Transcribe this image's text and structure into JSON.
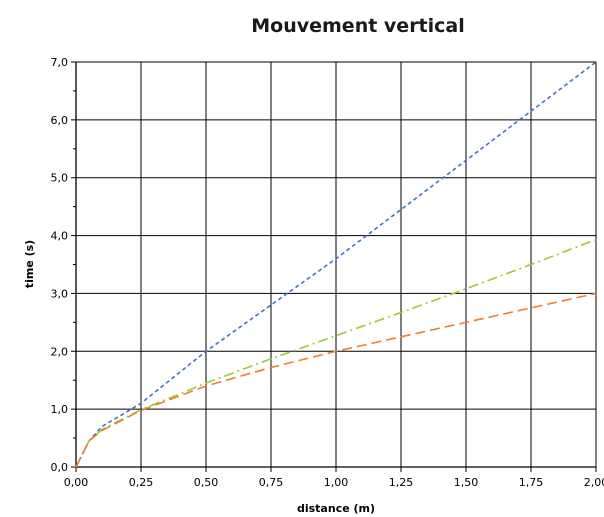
{
  "chart_data": {
    "type": "line",
    "title": "Mouvement vertical",
    "xlabel": "distance (m)",
    "ylabel": "time (s)",
    "xlim": [
      0,
      2
    ],
    "ylim": [
      0,
      7
    ],
    "grid": true,
    "x_ticks": [
      "0,00",
      "0,25",
      "0,50",
      "0,75",
      "1,00",
      "1,25",
      "1,50",
      "1,75",
      "2,00"
    ],
    "y_ticks": [
      "0,0",
      "1,0",
      "2,0",
      "3,0",
      "4,0",
      "5,0",
      "6,0",
      "7,0"
    ],
    "series": [
      {
        "color": "#4472c4",
        "style": "short-dash",
        "x": [
          0,
          0.05,
          0.1,
          0.25,
          0.5,
          0.75,
          1.0,
          1.25,
          1.5,
          1.75,
          2.0
        ],
        "values": [
          0,
          0.45,
          0.7,
          1.1,
          2.0,
          2.8,
          3.6,
          4.45,
          5.3,
          6.15,
          7.0
        ]
      },
      {
        "color": "#99cc33",
        "style": "dash-dot",
        "x": [
          0,
          0.05,
          0.1,
          0.25,
          0.5,
          0.75,
          1.0,
          1.25,
          1.5,
          1.75,
          2.0
        ],
        "values": [
          0,
          0.45,
          0.65,
          0.99,
          1.45,
          1.87,
          2.27,
          2.67,
          3.08,
          3.5,
          3.93
        ]
      },
      {
        "color": "#ed7d31",
        "style": "long-dash",
        "x": [
          0,
          0.05,
          0.1,
          0.25,
          0.5,
          0.75,
          1.0,
          1.25,
          1.5,
          1.75,
          2.0
        ],
        "values": [
          0,
          0.45,
          0.63,
          0.98,
          1.4,
          1.72,
          2.0,
          2.25,
          2.5,
          2.75,
          3.0
        ]
      }
    ]
  }
}
